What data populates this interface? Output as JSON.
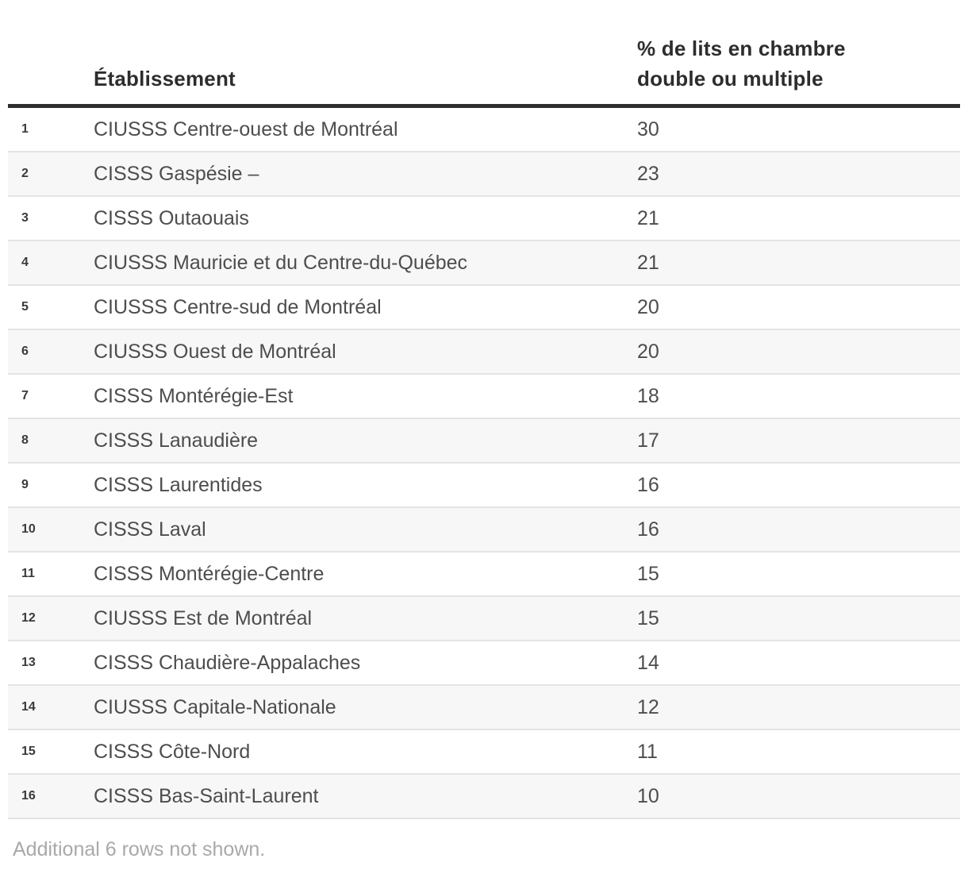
{
  "chart_data": {
    "type": "table",
    "columns": [
      "",
      "Établissement",
      "% de lits en chambre double ou multiple"
    ],
    "rows": [
      [
        1,
        "CIUSSS Centre-ouest de Montréal",
        30
      ],
      [
        2,
        "CISSS Gaspésie –",
        23
      ],
      [
        3,
        "CISSS Outaouais",
        21
      ],
      [
        4,
        "CIUSSS Mauricie et du Centre-du-Québec",
        21
      ],
      [
        5,
        "CIUSSS Centre-sud de Montréal",
        20
      ],
      [
        6,
        "CIUSSS Ouest de Montréal",
        20
      ],
      [
        7,
        "CISSS Montérégie-Est",
        18
      ],
      [
        8,
        "CISSS Lanaudière",
        17
      ],
      [
        9,
        "CISSS Laurentides",
        16
      ],
      [
        10,
        "CISSS Laval",
        16
      ],
      [
        11,
        "CISSS Montérégie-Centre",
        15
      ],
      [
        12,
        "CIUSSS Est de Montréal",
        15
      ],
      [
        13,
        "CISSS Chaudière-Appalaches",
        14
      ],
      [
        14,
        "CIUSSS Capitale-Nationale",
        12
      ],
      [
        15,
        "CISSS Côte-Nord",
        11
      ],
      [
        16,
        "CISSS Bas-Saint-Laurent",
        10
      ]
    ],
    "note": "Additional 6 rows not shown.",
    "layout": {
      "legend": "none",
      "grid": "row-separators",
      "row_striping": "alternate"
    }
  },
  "colors": {
    "header_text": "#2d2d2d",
    "header_border": "#2e2e2e",
    "body_text": "#4d4d4d",
    "rank_text": "#3a3a3a",
    "alt_row_bg": "#f7f7f7",
    "row_border": "#e4e4e4",
    "footer_text": "#a9a9a9"
  }
}
